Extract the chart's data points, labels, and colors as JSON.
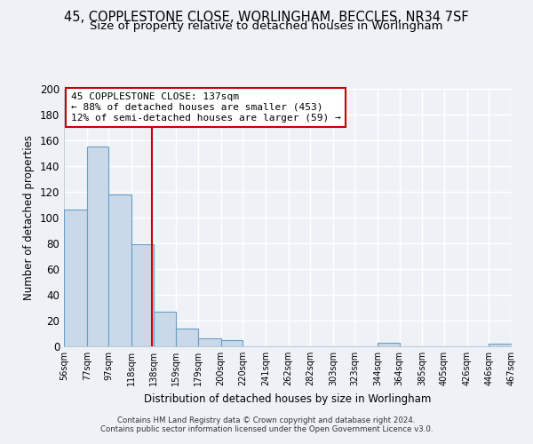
{
  "title": "45, COPPLESTONE CLOSE, WORLINGHAM, BECCLES, NR34 7SF",
  "subtitle": "Size of property relative to detached houses in Worlingham",
  "xlabel": "Distribution of detached houses by size in Worlingham",
  "ylabel": "Number of detached properties",
  "footer_line1": "Contains HM Land Registry data © Crown copyright and database right 2024.",
  "footer_line2": "Contains public sector information licensed under the Open Government Licence v3.0.",
  "annotation_line1": "45 COPPLESTONE CLOSE: 137sqm",
  "annotation_line2": "← 88% of detached houses are smaller (453)",
  "annotation_line3": "12% of semi-detached houses are larger (59) →",
  "bar_edges": [
    56,
    77,
    97,
    118,
    138,
    159,
    179,
    200,
    220,
    241,
    262,
    282,
    303,
    323,
    344,
    364,
    385,
    405,
    426,
    446,
    467
  ],
  "bar_heights": [
    106,
    155,
    118,
    79,
    27,
    14,
    6,
    5,
    0,
    0,
    0,
    0,
    0,
    0,
    3,
    0,
    0,
    0,
    0,
    2
  ],
  "bar_color": "#c9d9ea",
  "bar_edge_color": "#6a9ec4",
  "vline_x": 137,
  "vline_color": "#cc0000",
  "ylim": [
    0,
    200
  ],
  "yticks": [
    0,
    20,
    40,
    60,
    80,
    100,
    120,
    140,
    160,
    180,
    200
  ],
  "bg_color": "#eef2f7",
  "plot_bg_color": "#eef2f7",
  "grid_color": "#d0d8e4",
  "title_fontsize": 10.5,
  "subtitle_fontsize": 9.5
}
